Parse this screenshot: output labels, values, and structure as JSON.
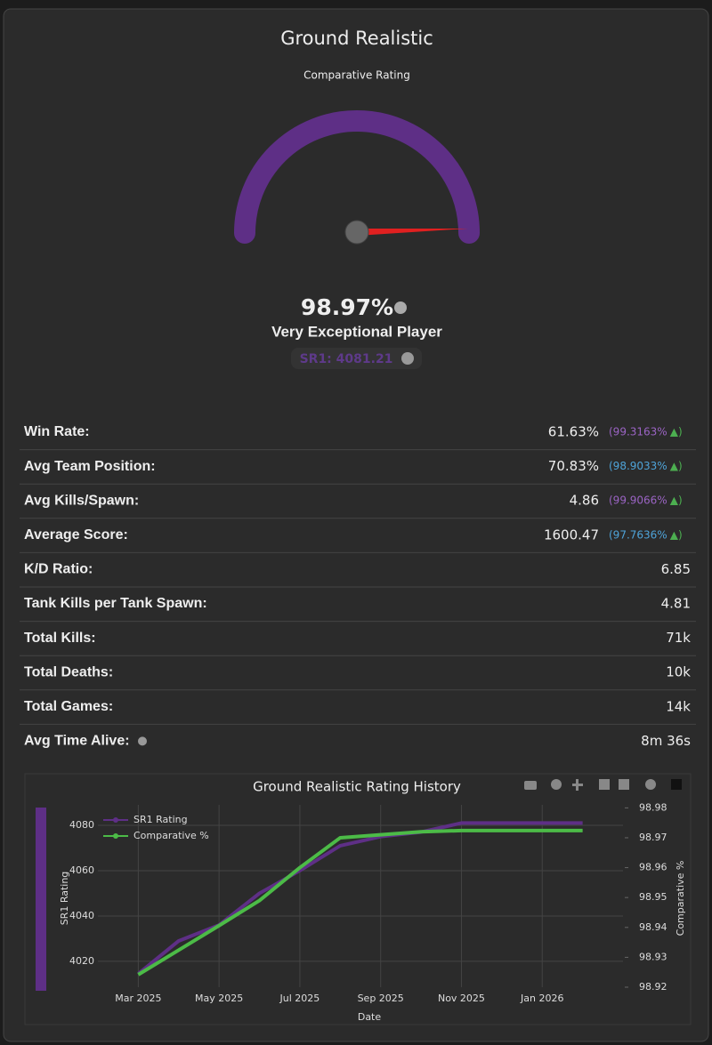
{
  "title": "Ground Realistic",
  "gauge": {
    "label": "Comparative Rating",
    "value": 98.97,
    "value_label": "98.97%",
    "range": [
      0,
      100
    ]
  },
  "rank": "Very Exceptional Player",
  "sr1": "SR1: 4081.21",
  "stats": [
    {
      "label": "Win Rate:",
      "value": "61.63%",
      "percentile": "(99.3163%",
      "trend": "▲)",
      "color": "#9b64c4"
    },
    {
      "label": "Avg Team Position:",
      "value": "70.83%",
      "percentile": "(98.9033%",
      "trend": "▲)",
      "color": "#4ea3d8"
    },
    {
      "label": "Avg Kills/Spawn:",
      "value": "4.86",
      "percentile": "(99.9066%",
      "trend": "▲)",
      "color": "#9b64c4"
    },
    {
      "label": "Average Score:",
      "value": "1600.47",
      "percentile": "(97.7636%",
      "trend": "▲)",
      "color": "#4ea3d8"
    },
    {
      "label": "K/D Ratio:",
      "value": "6.85"
    },
    {
      "label": "Tank Kills per Tank Spawn:",
      "value": "4.81"
    },
    {
      "label": "Total Kills:",
      "value": "71k"
    },
    {
      "label": "Total Deaths:",
      "value": "10k"
    },
    {
      "label": "Total Games:",
      "value": "14k"
    },
    {
      "label": "Avg Time Alive:",
      "value": "8m 36s"
    }
  ],
  "chart_data": {
    "type": "line",
    "title": "Ground Realistic Rating History",
    "x_label": "Date",
    "y_label": "SR1 Rating",
    "y2_label": "Comparative %",
    "x": [
      "2025-03",
      "2025-04",
      "2025-05",
      "2025-06",
      "2025-07",
      "2025-08",
      "2025-09",
      "2025-10",
      "2025-11",
      "2025-12",
      "2026-01",
      "2026-02"
    ],
    "xlim": [
      "2025-02",
      "2026-03"
    ],
    "xticks": [
      {
        "value": "2025-03",
        "label": "Mar 2025"
      },
      {
        "value": "2025-05",
        "label": "May 2025"
      },
      {
        "value": "2025-07",
        "label": "Jul 2025"
      },
      {
        "value": "2025-09",
        "label": "Sep 2025"
      },
      {
        "value": "2025-11",
        "label": "Nov 2025"
      },
      {
        "value": "2026-01",
        "label": "Jan 2026"
      }
    ],
    "ylim": [
      4008.6,
      4089
    ],
    "yticks": [
      4020,
      4040,
      4060,
      4080
    ],
    "y2lim": [
      98.92,
      98.981
    ],
    "y2ticks": [
      98.92,
      98.93,
      98.94,
      98.95,
      98.96,
      98.97,
      98.98
    ],
    "grid": true,
    "series": [
      {
        "name": "SR1 Rating",
        "color": "#5e2f86",
        "values": [
          4014.5,
          4029,
          4036,
          4050,
          4060,
          4071,
          4075,
          4077,
          4081,
          4081,
          4081,
          4081
        ]
      },
      {
        "name": "Comparative %",
        "color": "#4cbb47",
        "axis": "y2",
        "values": [
          98.9242,
          98.9324,
          98.9406,
          98.949,
          98.96,
          98.97,
          98.971,
          98.972,
          98.9724,
          98.9724,
          98.9724,
          98.9724
        ]
      }
    ]
  }
}
